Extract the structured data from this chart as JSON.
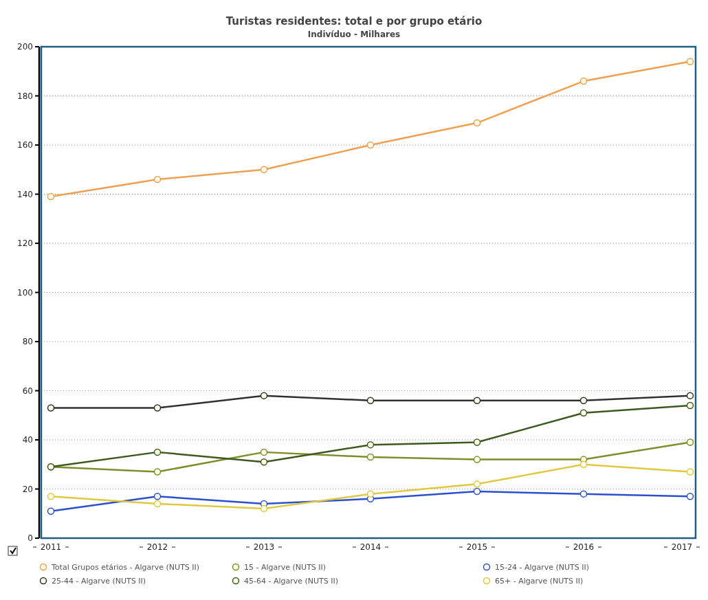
{
  "chart_data": {
    "type": "line",
    "title": "Turistas residentes: total e por grupo etário",
    "subtitle": "Indivíduo - Milhares",
    "categories": [
      "2011",
      "2012",
      "2013",
      "2014",
      "2015",
      "2016",
      "2017"
    ],
    "series": [
      {
        "name": "Total Grupos etários - Algarve (NUTS II)",
        "color": "#f0a050",
        "values": [
          139,
          146,
          150,
          160,
          169,
          186,
          194
        ]
      },
      {
        "name": "15 - Algarve (NUTS II)",
        "color": "#7d8f2a",
        "values": [
          29,
          27,
          35,
          33,
          32,
          32,
          39
        ]
      },
      {
        "name": "15-24 - Algarve (NUTS II)",
        "color": "#2a50d0",
        "values": [
          11,
          17,
          14,
          16,
          19,
          18,
          17
        ]
      },
      {
        "name": "25-44 - Algarve (NUTS II)",
        "color": "#303030",
        "values": [
          53,
          53,
          58,
          56,
          56,
          56,
          58
        ]
      },
      {
        "name": "45-64 - Algarve (NUTS II)",
        "color": "#3d5a1e",
        "values": [
          29,
          35,
          31,
          38,
          39,
          51,
          54
        ]
      },
      {
        "name": "65+ - Algarve (NUTS II)",
        "color": "#e0c840",
        "values": [
          17,
          14,
          12,
          18,
          22,
          30,
          27
        ]
      }
    ],
    "ylim": [
      0,
      200
    ],
    "yticks": [
      0,
      20,
      40,
      60,
      80,
      100,
      120,
      140,
      160,
      180,
      200
    ],
    "grid": "y",
    "legend": "bottom",
    "marker": "circle",
    "line_style": "solid"
  }
}
